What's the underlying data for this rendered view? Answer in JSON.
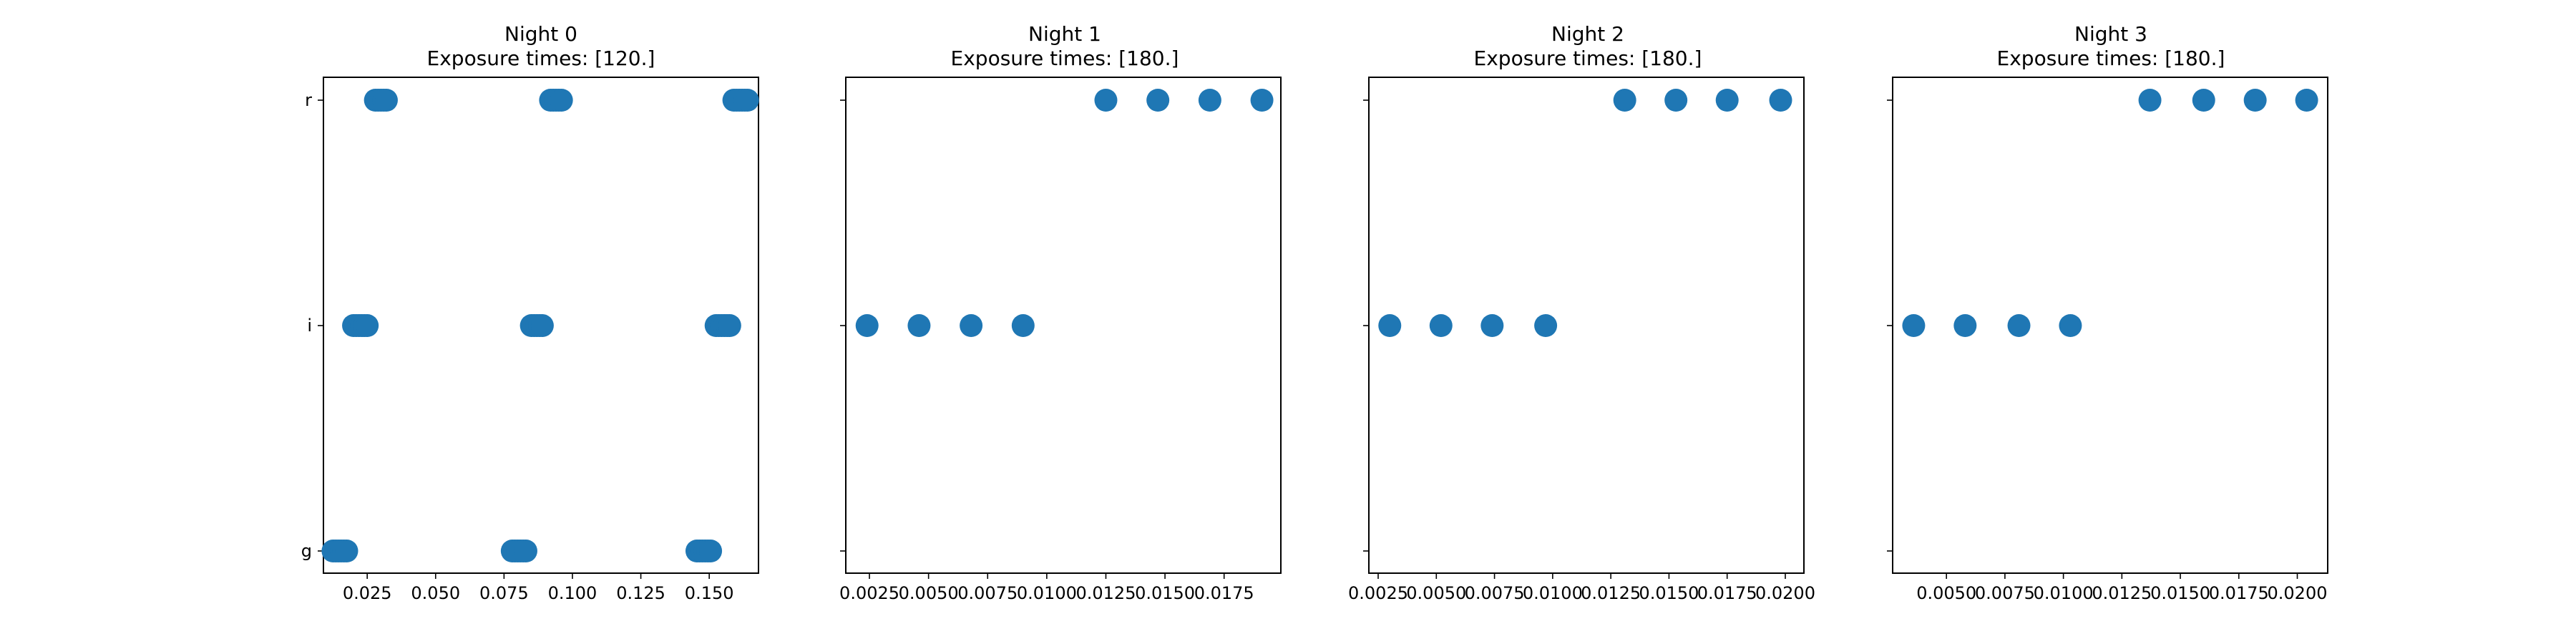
{
  "chart_data": [
    {
      "type": "scatter",
      "title": "Night 0",
      "subtitle": "Exposure times: [120.]",
      "categories": [
        "g",
        "i",
        "r"
      ],
      "xlim": [
        0.009,
        0.168
      ],
      "xticks": [
        0.025,
        0.05,
        0.075,
        0.1,
        0.125,
        0.15
      ],
      "xtick_labels": [
        "0.025",
        "0.050",
        "0.075",
        "0.100",
        "0.125",
        "0.150"
      ],
      "show_ytick_labels": true,
      "marker_color": "#1f77b4",
      "points": [
        {
          "x": 0.0125,
          "y": "g"
        },
        {
          "x": 0.0135,
          "y": "g"
        },
        {
          "x": 0.0145,
          "y": "g"
        },
        {
          "x": 0.0155,
          "y": "g"
        },
        {
          "x": 0.0165,
          "y": "g"
        },
        {
          "x": 0.0175,
          "y": "g"
        },
        {
          "x": 0.078,
          "y": "g"
        },
        {
          "x": 0.079,
          "y": "g"
        },
        {
          "x": 0.08,
          "y": "g"
        },
        {
          "x": 0.081,
          "y": "g"
        },
        {
          "x": 0.082,
          "y": "g"
        },
        {
          "x": 0.083,
          "y": "g"
        },
        {
          "x": 0.1455,
          "y": "g"
        },
        {
          "x": 0.1465,
          "y": "g"
        },
        {
          "x": 0.1475,
          "y": "g"
        },
        {
          "x": 0.1485,
          "y": "g"
        },
        {
          "x": 0.1495,
          "y": "g"
        },
        {
          "x": 0.1505,
          "y": "g"
        },
        {
          "x": 0.02,
          "y": "i"
        },
        {
          "x": 0.021,
          "y": "i"
        },
        {
          "x": 0.022,
          "y": "i"
        },
        {
          "x": 0.023,
          "y": "i"
        },
        {
          "x": 0.024,
          "y": "i"
        },
        {
          "x": 0.025,
          "y": "i"
        },
        {
          "x": 0.085,
          "y": "i"
        },
        {
          "x": 0.086,
          "y": "i"
        },
        {
          "x": 0.087,
          "y": "i"
        },
        {
          "x": 0.088,
          "y": "i"
        },
        {
          "x": 0.089,
          "y": "i"
        },
        {
          "x": 0.1525,
          "y": "i"
        },
        {
          "x": 0.1535,
          "y": "i"
        },
        {
          "x": 0.1545,
          "y": "i"
        },
        {
          "x": 0.1555,
          "y": "i"
        },
        {
          "x": 0.1565,
          "y": "i"
        },
        {
          "x": 0.1575,
          "y": "i"
        },
        {
          "x": 0.028,
          "y": "r"
        },
        {
          "x": 0.029,
          "y": "r"
        },
        {
          "x": 0.03,
          "y": "r"
        },
        {
          "x": 0.031,
          "y": "r"
        },
        {
          "x": 0.032,
          "y": "r"
        },
        {
          "x": 0.092,
          "y": "r"
        },
        {
          "x": 0.093,
          "y": "r"
        },
        {
          "x": 0.094,
          "y": "r"
        },
        {
          "x": 0.095,
          "y": "r"
        },
        {
          "x": 0.096,
          "y": "r"
        },
        {
          "x": 0.159,
          "y": "r"
        },
        {
          "x": 0.16,
          "y": "r"
        },
        {
          "x": 0.161,
          "y": "r"
        },
        {
          "x": 0.162,
          "y": "r"
        },
        {
          "x": 0.163,
          "y": "r"
        },
        {
          "x": 0.164,
          "y": "r"
        }
      ]
    },
    {
      "type": "scatter",
      "title": "Night 1",
      "subtitle": "Exposure times: [180.]",
      "categories": [
        "g",
        "i",
        "r"
      ],
      "xlim": [
        0.0015,
        0.0199
      ],
      "xticks": [
        0.0025,
        0.005,
        0.0075,
        0.01,
        0.0125,
        0.015,
        0.0175
      ],
      "xtick_labels": [
        "0.0025",
        "0.0050",
        "0.0075",
        "0.0100",
        "0.0125",
        "0.0150",
        "0.0175"
      ],
      "show_ytick_labels": false,
      "marker_color": "#1f77b4",
      "points": [
        {
          "x": 0.0024,
          "y": "i"
        },
        {
          "x": 0.0046,
          "y": "i"
        },
        {
          "x": 0.0068,
          "y": "i"
        },
        {
          "x": 0.009,
          "y": "i"
        },
        {
          "x": 0.0125,
          "y": "r"
        },
        {
          "x": 0.0147,
          "y": "r"
        },
        {
          "x": 0.0169,
          "y": "r"
        },
        {
          "x": 0.0191,
          "y": "r"
        }
      ]
    },
    {
      "type": "scatter",
      "title": "Night 2",
      "subtitle": "Exposure times: [180.]",
      "categories": [
        "g",
        "i",
        "r"
      ],
      "xlim": [
        0.0021,
        0.0208
      ],
      "xticks": [
        0.0025,
        0.005,
        0.0075,
        0.01,
        0.0125,
        0.015,
        0.0175,
        0.02
      ],
      "xtick_labels": [
        "0.0025",
        "0.0050",
        "0.0075",
        "0.0100",
        "0.0125",
        "0.0150",
        "0.0175",
        "0.0200"
      ],
      "show_ytick_labels": false,
      "marker_color": "#1f77b4",
      "points": [
        {
          "x": 0.003,
          "y": "i"
        },
        {
          "x": 0.0052,
          "y": "i"
        },
        {
          "x": 0.0074,
          "y": "i"
        },
        {
          "x": 0.0097,
          "y": "i"
        },
        {
          "x": 0.0131,
          "y": "r"
        },
        {
          "x": 0.0153,
          "y": "r"
        },
        {
          "x": 0.0175,
          "y": "r"
        },
        {
          "x": 0.0198,
          "y": "r"
        }
      ]
    },
    {
      "type": "scatter",
      "title": "Night 3",
      "subtitle": "Exposure times: [180.]",
      "categories": [
        "g",
        "i",
        "r"
      ],
      "xlim": [
        0.0027,
        0.0213
      ],
      "xticks": [
        0.005,
        0.0075,
        0.01,
        0.0125,
        0.015,
        0.0175,
        0.02
      ],
      "xtick_labels": [
        "0.0050",
        "0.0075",
        "0.0100",
        "0.0125",
        "0.0150",
        "0.0175",
        "0.0200"
      ],
      "show_ytick_labels": false,
      "marker_color": "#1f77b4",
      "points": [
        {
          "x": 0.0036,
          "y": "i"
        },
        {
          "x": 0.0058,
          "y": "i"
        },
        {
          "x": 0.0081,
          "y": "i"
        },
        {
          "x": 0.0103,
          "y": "i"
        },
        {
          "x": 0.0137,
          "y": "r"
        },
        {
          "x": 0.016,
          "y": "r"
        },
        {
          "x": 0.0182,
          "y": "r"
        },
        {
          "x": 0.0204,
          "y": "r"
        }
      ]
    }
  ]
}
